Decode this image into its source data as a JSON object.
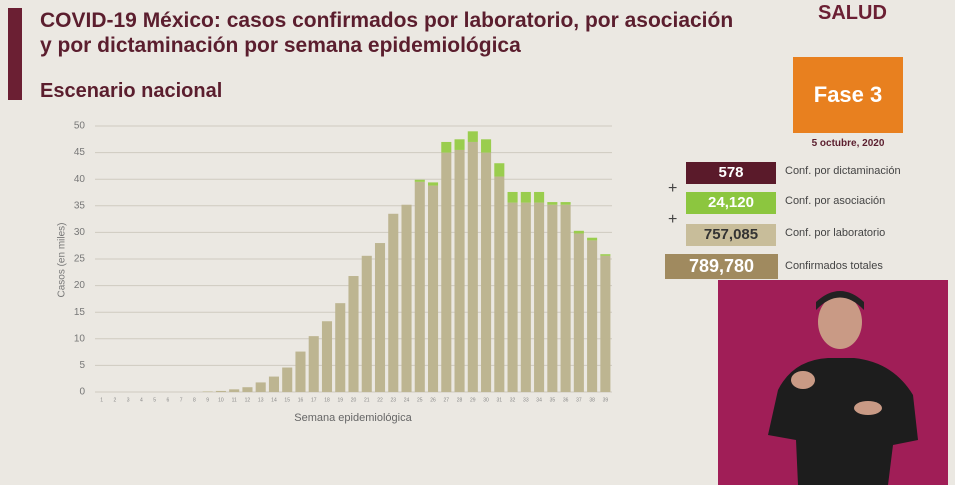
{
  "header": {
    "title": "COVID-19 México: casos confirmados por laboratorio, por asociación y por dictaminación por semana epidemiológica",
    "subtitle": "Escenario nacional",
    "org": "SALUD",
    "phase": "Fase 3",
    "date": "5 octubre, 2020"
  },
  "summary": [
    {
      "value": "578",
      "label": "Conf. por dictaminación"
    },
    {
      "value": "24,120",
      "label": "Conf. por asociación"
    },
    {
      "value": "757,085",
      "label": "Conf. por laboratorio"
    },
    {
      "value": "789,780",
      "label": "Confirmados totales"
    }
  ],
  "chart_data": {
    "type": "stacked_bar",
    "y_label": "Casos (en miles)",
    "x_label": "Semana epidemiológica",
    "categories": [
      "1",
      "2",
      "3",
      "4",
      "5",
      "6",
      "7",
      "8",
      "9",
      "10",
      "11",
      "12",
      "13",
      "14",
      "15",
      "16",
      "17",
      "18",
      "19",
      "20",
      "21",
      "22",
      "23",
      "24",
      "25",
      "26",
      "27",
      "28",
      "29",
      "30",
      "31",
      "32",
      "33",
      "34",
      "35",
      "36",
      "37",
      "38",
      "39"
    ],
    "series": [
      {
        "name": "Conf. por laboratorio",
        "color": "#bdb591",
        "values": [
          0,
          0,
          0,
          0,
          0,
          0,
          0,
          0,
          0.1,
          0.2,
          0.5,
          0.9,
          1.8,
          2.9,
          4.6,
          7.6,
          10.5,
          13.3,
          16.7,
          21.8,
          25.6,
          28.0,
          33.5,
          35.2,
          39.5,
          38.8,
          45.0,
          45.5,
          47.0,
          45.0,
          40.5,
          35.6,
          35.6,
          35.6,
          35.2,
          35.2,
          29.8,
          28.5,
          25.6
        ]
      },
      {
        "name": "Conf. por asociación",
        "color": "#9acd4e",
        "values": [
          0,
          0,
          0,
          0,
          0,
          0,
          0,
          0,
          0,
          0,
          0,
          0,
          0,
          0,
          0,
          0,
          0,
          0,
          0,
          0,
          0,
          0,
          0,
          0,
          0.4,
          0.6,
          2.0,
          2.0,
          2.0,
          2.5,
          2.5,
          2.0,
          2.0,
          2.0,
          0.5,
          0.5,
          0.5,
          0.5,
          0.3
        ]
      }
    ],
    "ylim": [
      0,
      50
    ],
    "yticks": [
      0,
      5,
      10,
      15,
      20,
      25,
      30,
      35,
      40,
      45,
      50
    ],
    "grid": true
  }
}
